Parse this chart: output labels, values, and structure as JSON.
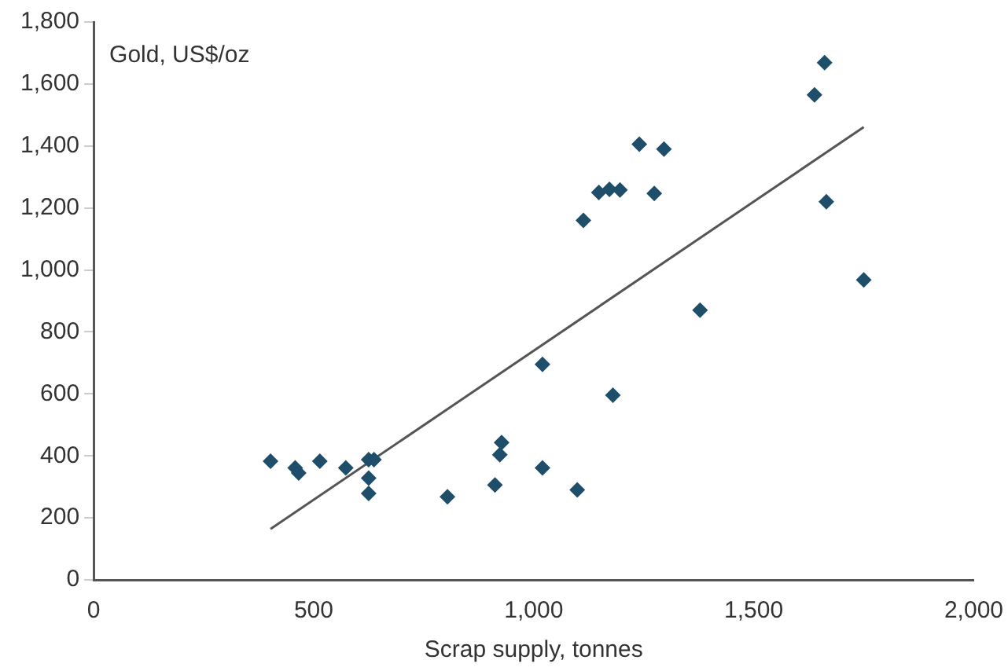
{
  "chart_data": {
    "type": "scatter",
    "xlabel": "Scrap supply, tonnes",
    "annotations": [
      "Gold, US$/oz"
    ],
    "grid": false,
    "legend": false,
    "xlim": [
      0,
      2000
    ],
    "xticks": [
      0,
      {
        "value": 500,
        "label": "500"
      },
      {
        "value": 1000,
        "label": "1,000"
      },
      {
        "value": 1500,
        "label": "1,500"
      },
      {
        "value": 2000,
        "label": "2,000"
      }
    ],
    "ylim": [
      0,
      1800
    ],
    "yticks": [
      0,
      200,
      400,
      600,
      800,
      {
        "value": 1000,
        "label": "1,000"
      },
      {
        "value": 1200,
        "label": "1,200"
      },
      {
        "value": 1400,
        "label": "1,400"
      },
      {
        "value": 1600,
        "label": "1,600"
      },
      {
        "value": 1800,
        "label": "1,800"
      }
    ],
    "series": [
      {
        "marker": "diamond",
        "color": "#1f4e6b",
        "x": [
          402,
          458,
          466,
          514,
          573,
          625,
          637,
          625,
          625,
          804,
          912,
          923,
          927,
          1020,
          1020,
          1099,
          1113,
          1148,
          1172,
          1196,
          1180,
          1240,
          1274,
          1296,
          1378,
          1638,
          1661,
          1665,
          1750
        ],
        "values": [
          383,
          361,
          345,
          383,
          361,
          388,
          388,
          328,
          279,
          268,
          306,
          404,
          443,
          695,
          361,
          290,
          1160,
          1250,
          1260,
          1258,
          596,
          1406,
          1247,
          1390,
          870,
          1565,
          1669,
          1220,
          968
        ]
      },
      {
        "type": "line",
        "marker": "none",
        "color": "#555555",
        "x": [
          402,
          1750
        ],
        "values": [
          164,
          1461
        ]
      }
    ]
  }
}
